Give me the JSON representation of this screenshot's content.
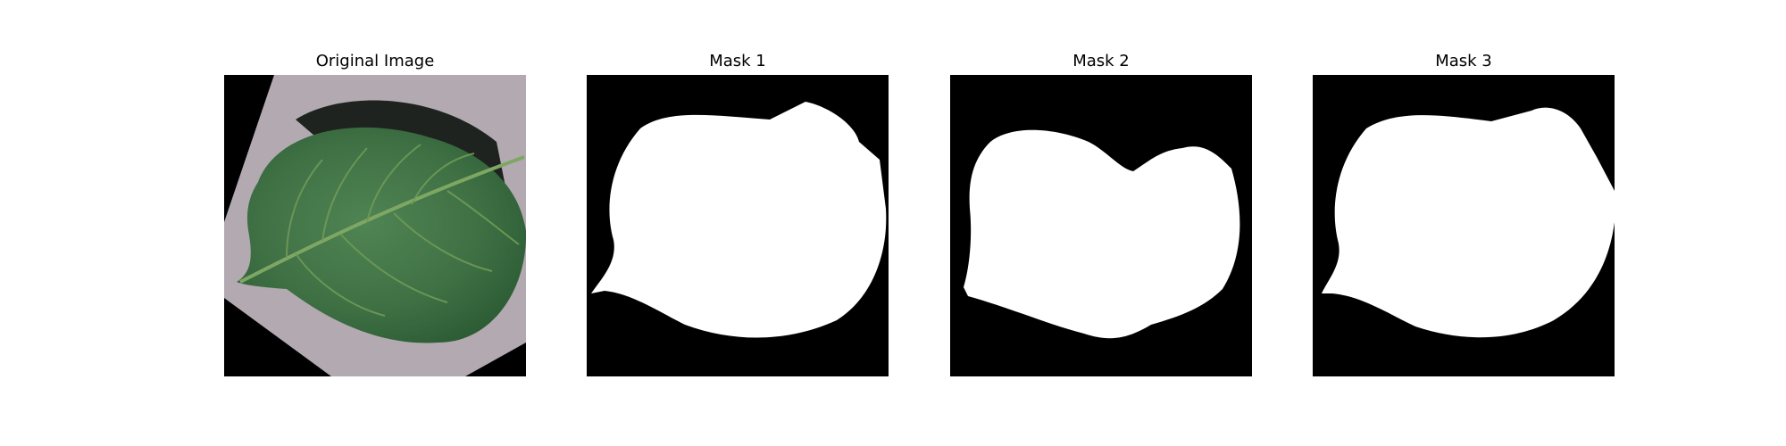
{
  "panels": [
    {
      "title": "Original Image"
    },
    {
      "title": "Mask 1"
    },
    {
      "title": "Mask 2"
    },
    {
      "title": "Mask 3"
    }
  ],
  "colors": {
    "background": "#000000",
    "mask": "#ffffff",
    "paper": "#b3aab1",
    "leaf": "#3f7044",
    "leaf_dark": "#2b5a33",
    "vein": "#6f9a57",
    "shadow": "#1e231f"
  }
}
